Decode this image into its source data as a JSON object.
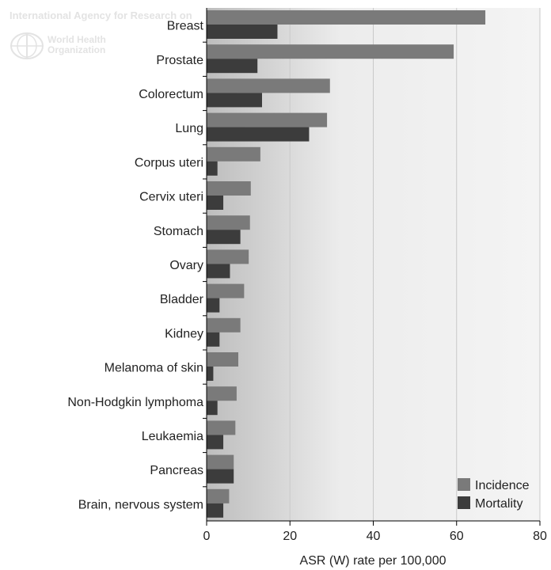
{
  "watermark": {
    "agency": "International Agency for Research on",
    "who_line1": "World Health",
    "who_line2": "Organization"
  },
  "chart_data": {
    "type": "bar",
    "orientation": "horizontal",
    "categories": [
      "Breast",
      "Prostate",
      "Colorectum",
      "Lung",
      "Corpus uteri",
      "Cervix uteri",
      "Stomach",
      "Ovary",
      "Bladder",
      "Kidney",
      "Melanoma of skin",
      "Non-Hodgkin lymphoma",
      "Leukaemia",
      "Pancreas",
      "Brain, nervous system"
    ],
    "series": [
      {
        "name": "Incidence",
        "color": "#7a7a7a",
        "values": [
          66.9,
          59.3,
          29.6,
          28.9,
          12.9,
          10.6,
          10.4,
          10.1,
          9.0,
          8.1,
          7.6,
          7.2,
          6.9,
          6.5,
          5.4
        ]
      },
      {
        "name": "Mortality",
        "color": "#3c3c3c",
        "values": [
          17.0,
          12.2,
          13.3,
          24.6,
          2.6,
          4.0,
          8.1,
          5.6,
          3.1,
          3.1,
          1.6,
          2.6,
          4.0,
          6.5,
          4.0
        ]
      }
    ],
    "xlabel": "ASR (W) rate per 100,000",
    "ylabel": "",
    "xlim": [
      0,
      80
    ],
    "xticks": [
      0,
      20,
      40,
      60,
      80
    ],
    "grid": true,
    "legend": "bottom-right"
  }
}
